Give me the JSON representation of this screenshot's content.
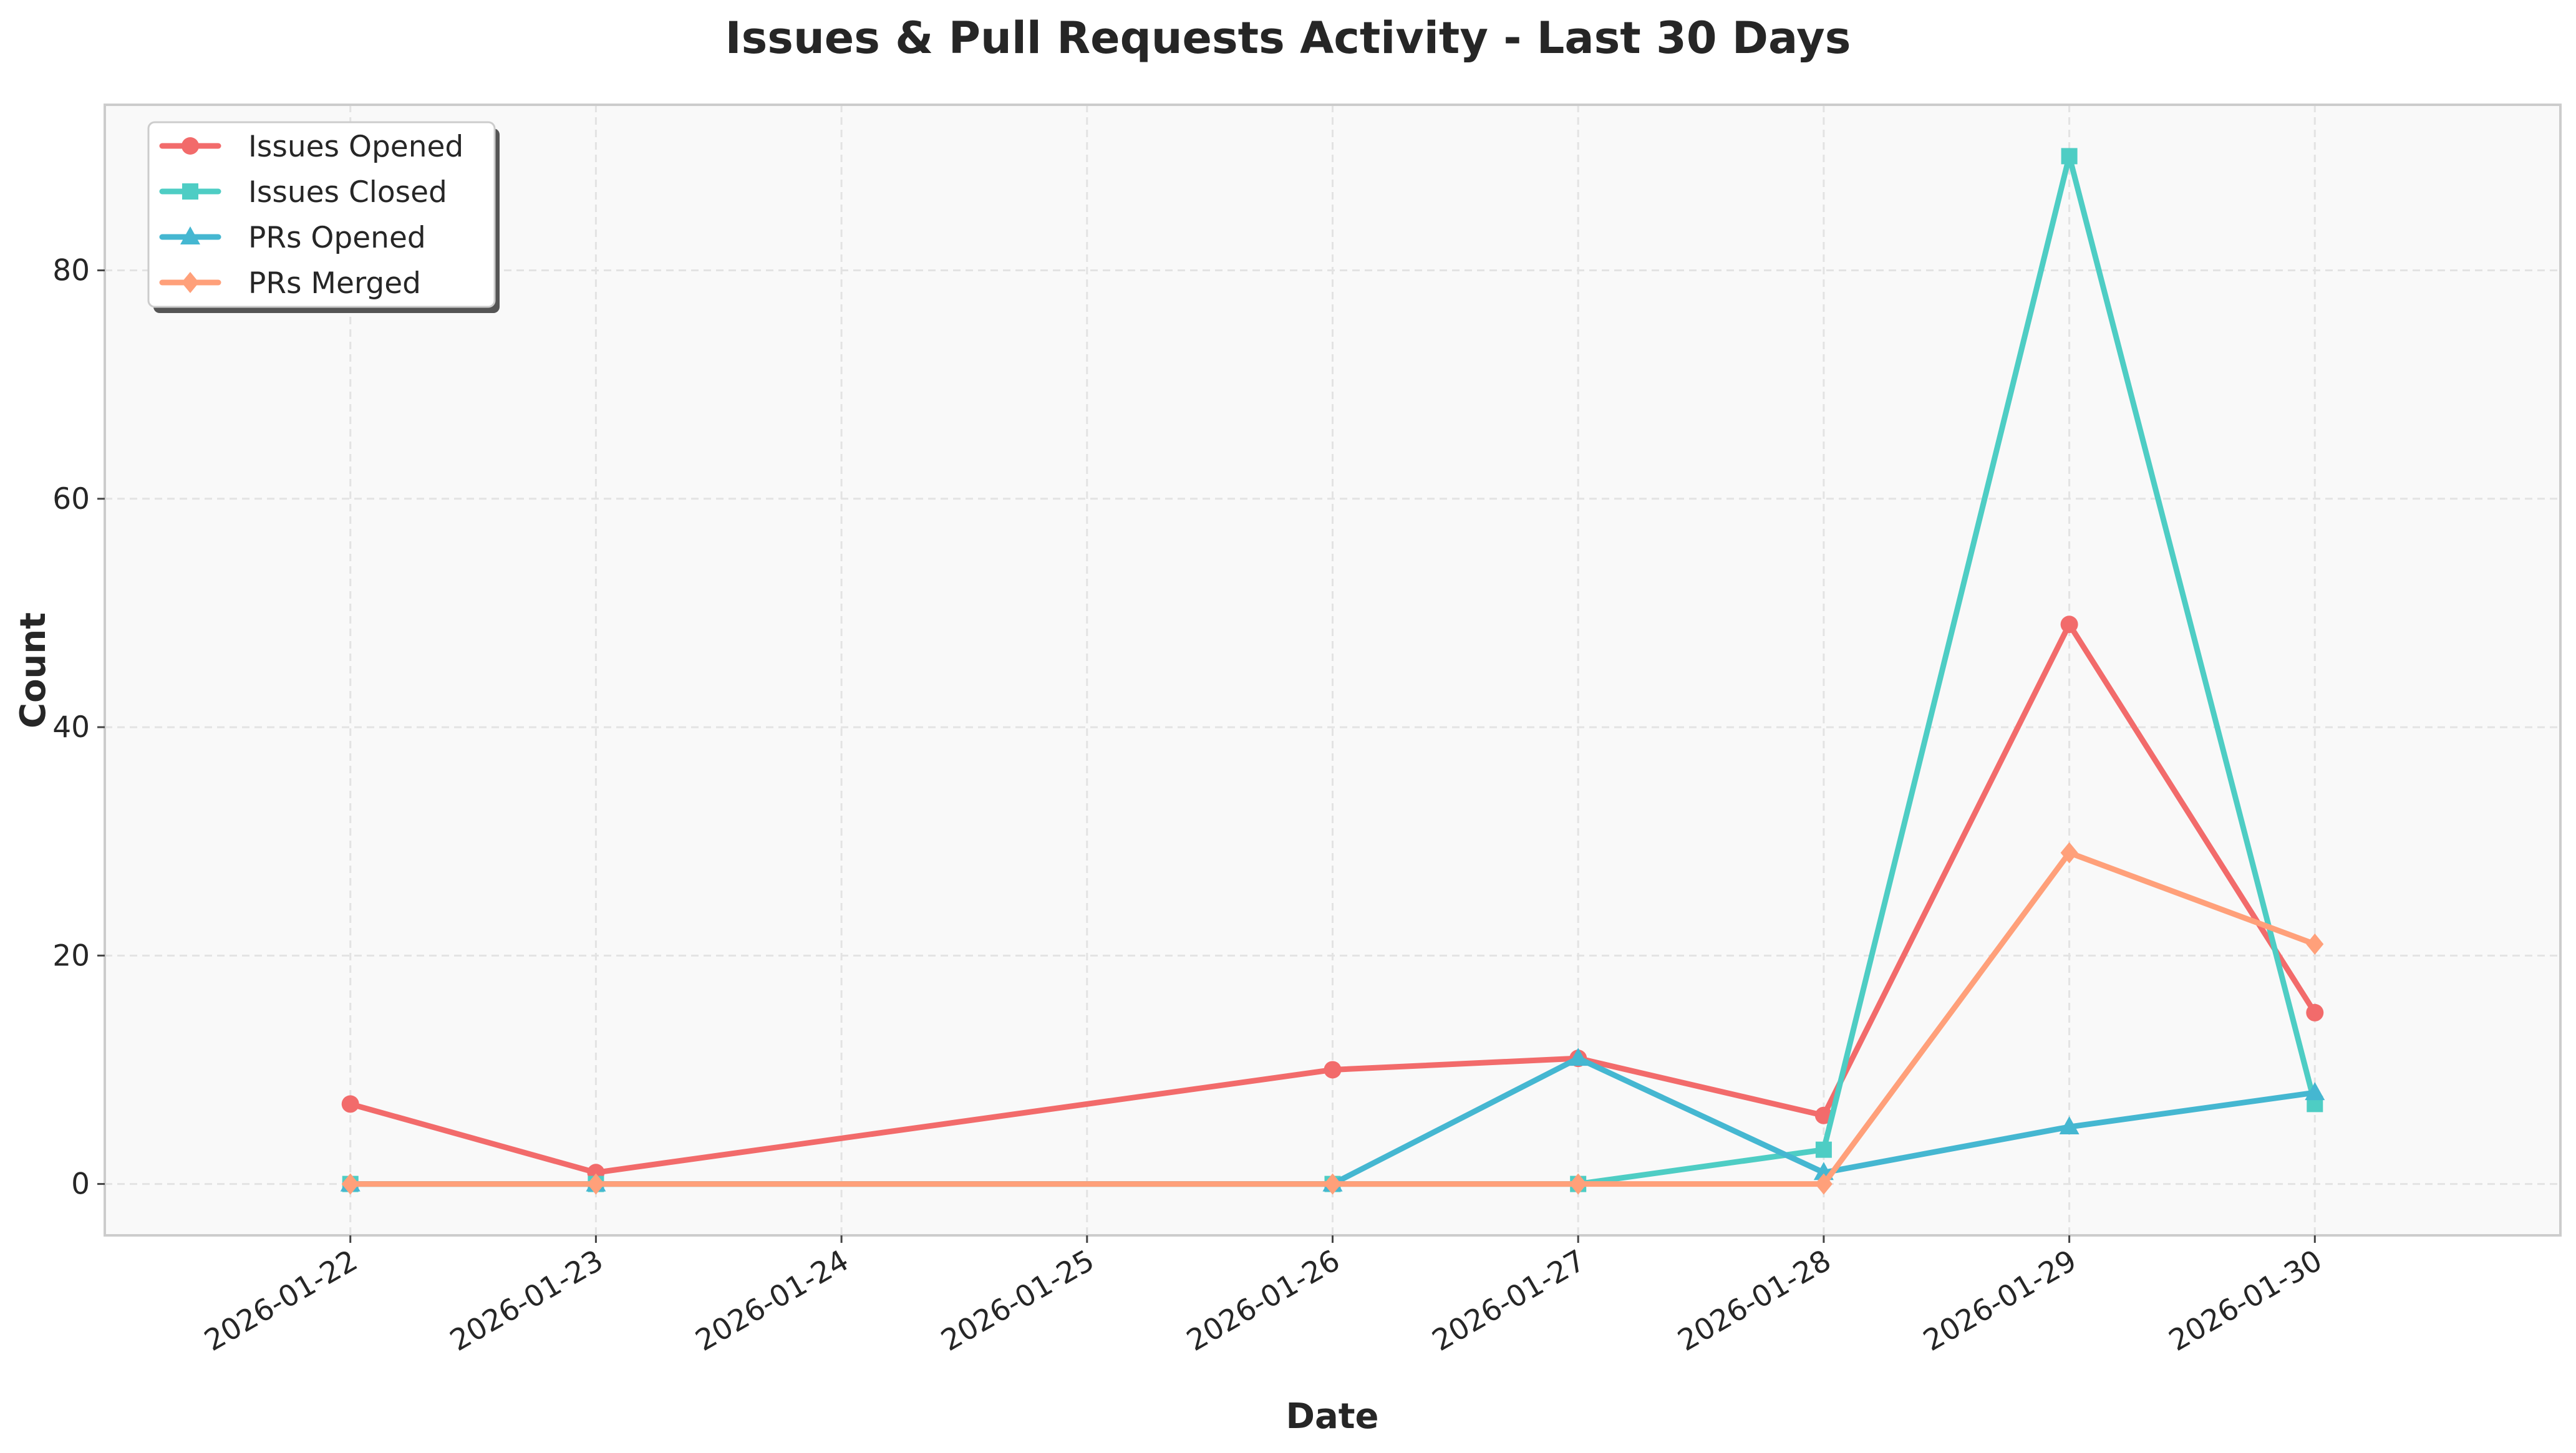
{
  "chart_data": {
    "type": "line",
    "title": "Issues & Pull Requests Activity - Last 30 Days",
    "xlabel": "Date",
    "ylabel": "Count",
    "x_ticks": [
      "2026-01-22",
      "2026-01-23",
      "2026-01-24",
      "2026-01-25",
      "2026-01-26",
      "2026-01-27",
      "2026-01-28",
      "2026-01-29",
      "2026-01-30"
    ],
    "x_range": [
      "2026-01-21",
      "2026-01-31"
    ],
    "ylim": [
      -4.5,
      94.5
    ],
    "y_ticks": [
      0,
      20,
      40,
      60,
      80
    ],
    "grid": true,
    "legend_position": "top-left",
    "series": [
      {
        "name": "Issues Opened",
        "color": "#f26b6b",
        "marker": "circle",
        "x": [
          "2026-01-22",
          "2026-01-23",
          "2026-01-26",
          "2026-01-27",
          "2026-01-28",
          "2026-01-29",
          "2026-01-30"
        ],
        "values": [
          7,
          1,
          10,
          11,
          6,
          49,
          15
        ]
      },
      {
        "name": "Issues Closed",
        "color": "#4ecdc4",
        "marker": "square",
        "x": [
          "2026-01-22",
          "2026-01-23",
          "2026-01-26",
          "2026-01-27",
          "2026-01-28",
          "2026-01-29",
          "2026-01-30"
        ],
        "values": [
          0,
          0,
          0,
          0,
          3,
          90,
          7
        ]
      },
      {
        "name": "PRs Opened",
        "color": "#45b7d1",
        "marker": "triangle",
        "x": [
          "2026-01-22",
          "2026-01-23",
          "2026-01-26",
          "2026-01-27",
          "2026-01-28",
          "2026-01-29",
          "2026-01-30"
        ],
        "values": [
          0,
          0,
          0,
          11,
          1,
          5,
          8
        ]
      },
      {
        "name": "PRs Merged",
        "color": "#ffa07a",
        "marker": "diamond",
        "x": [
          "2026-01-22",
          "2026-01-23",
          "2026-01-26",
          "2026-01-27",
          "2026-01-28",
          "2026-01-29",
          "2026-01-30"
        ],
        "values": [
          0,
          0,
          0,
          0,
          0,
          29,
          21
        ]
      }
    ]
  }
}
